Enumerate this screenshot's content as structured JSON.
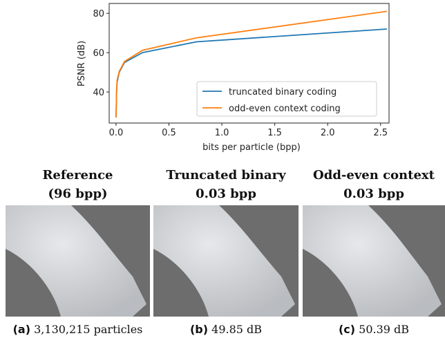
{
  "chart_data": {
    "type": "line",
    "x_label": "bits per particle (bpp)",
    "y_label": "PSNR (dB)",
    "xlim": [
      -0.065,
      2.58
    ],
    "ylim": [
      24.2,
      85
    ],
    "xticks": [
      {
        "value": 0,
        "label": "0.0"
      },
      {
        "value": 0.5,
        "label": "0.5"
      },
      {
        "value": 1,
        "label": "1.0"
      },
      {
        "value": 1.5,
        "label": "1.5"
      },
      {
        "value": 2,
        "label": "2.0"
      },
      {
        "value": 2.5,
        "label": "2.5"
      }
    ],
    "yticks": [
      40,
      60,
      80
    ],
    "legend": "lower right",
    "series": [
      {
        "name": "truncated binary coding",
        "color": "#1f77b4",
        "x": [
          0,
          0.005,
          0.01,
          0.03,
          0.08,
          0.25,
          0.76,
          2.56
        ],
        "values": [
          27,
          40,
          45,
          50,
          55,
          60,
          65.5,
          72
        ]
      },
      {
        "name": "odd-even context coding",
        "color": "#ff7f0e",
        "x": [
          0,
          0.005,
          0.01,
          0.03,
          0.08,
          0.25,
          0.76,
          2.56
        ],
        "values": [
          27,
          41,
          46,
          50.4,
          55.5,
          61.2,
          67.5,
          81
        ]
      }
    ]
  },
  "panels": [
    {
      "title": "Reference",
      "subtitle": "(96 bpp)",
      "tag": "(a)",
      "caption": "3,130,215 particles"
    },
    {
      "title": "Truncated binary",
      "subtitle": "0.03 bpp",
      "tag": "(b)",
      "caption": "49.85 dB"
    },
    {
      "title": "Odd-even context",
      "subtitle": "0.03 bpp",
      "tag": "(c)",
      "caption": "50.39 dB"
    }
  ]
}
